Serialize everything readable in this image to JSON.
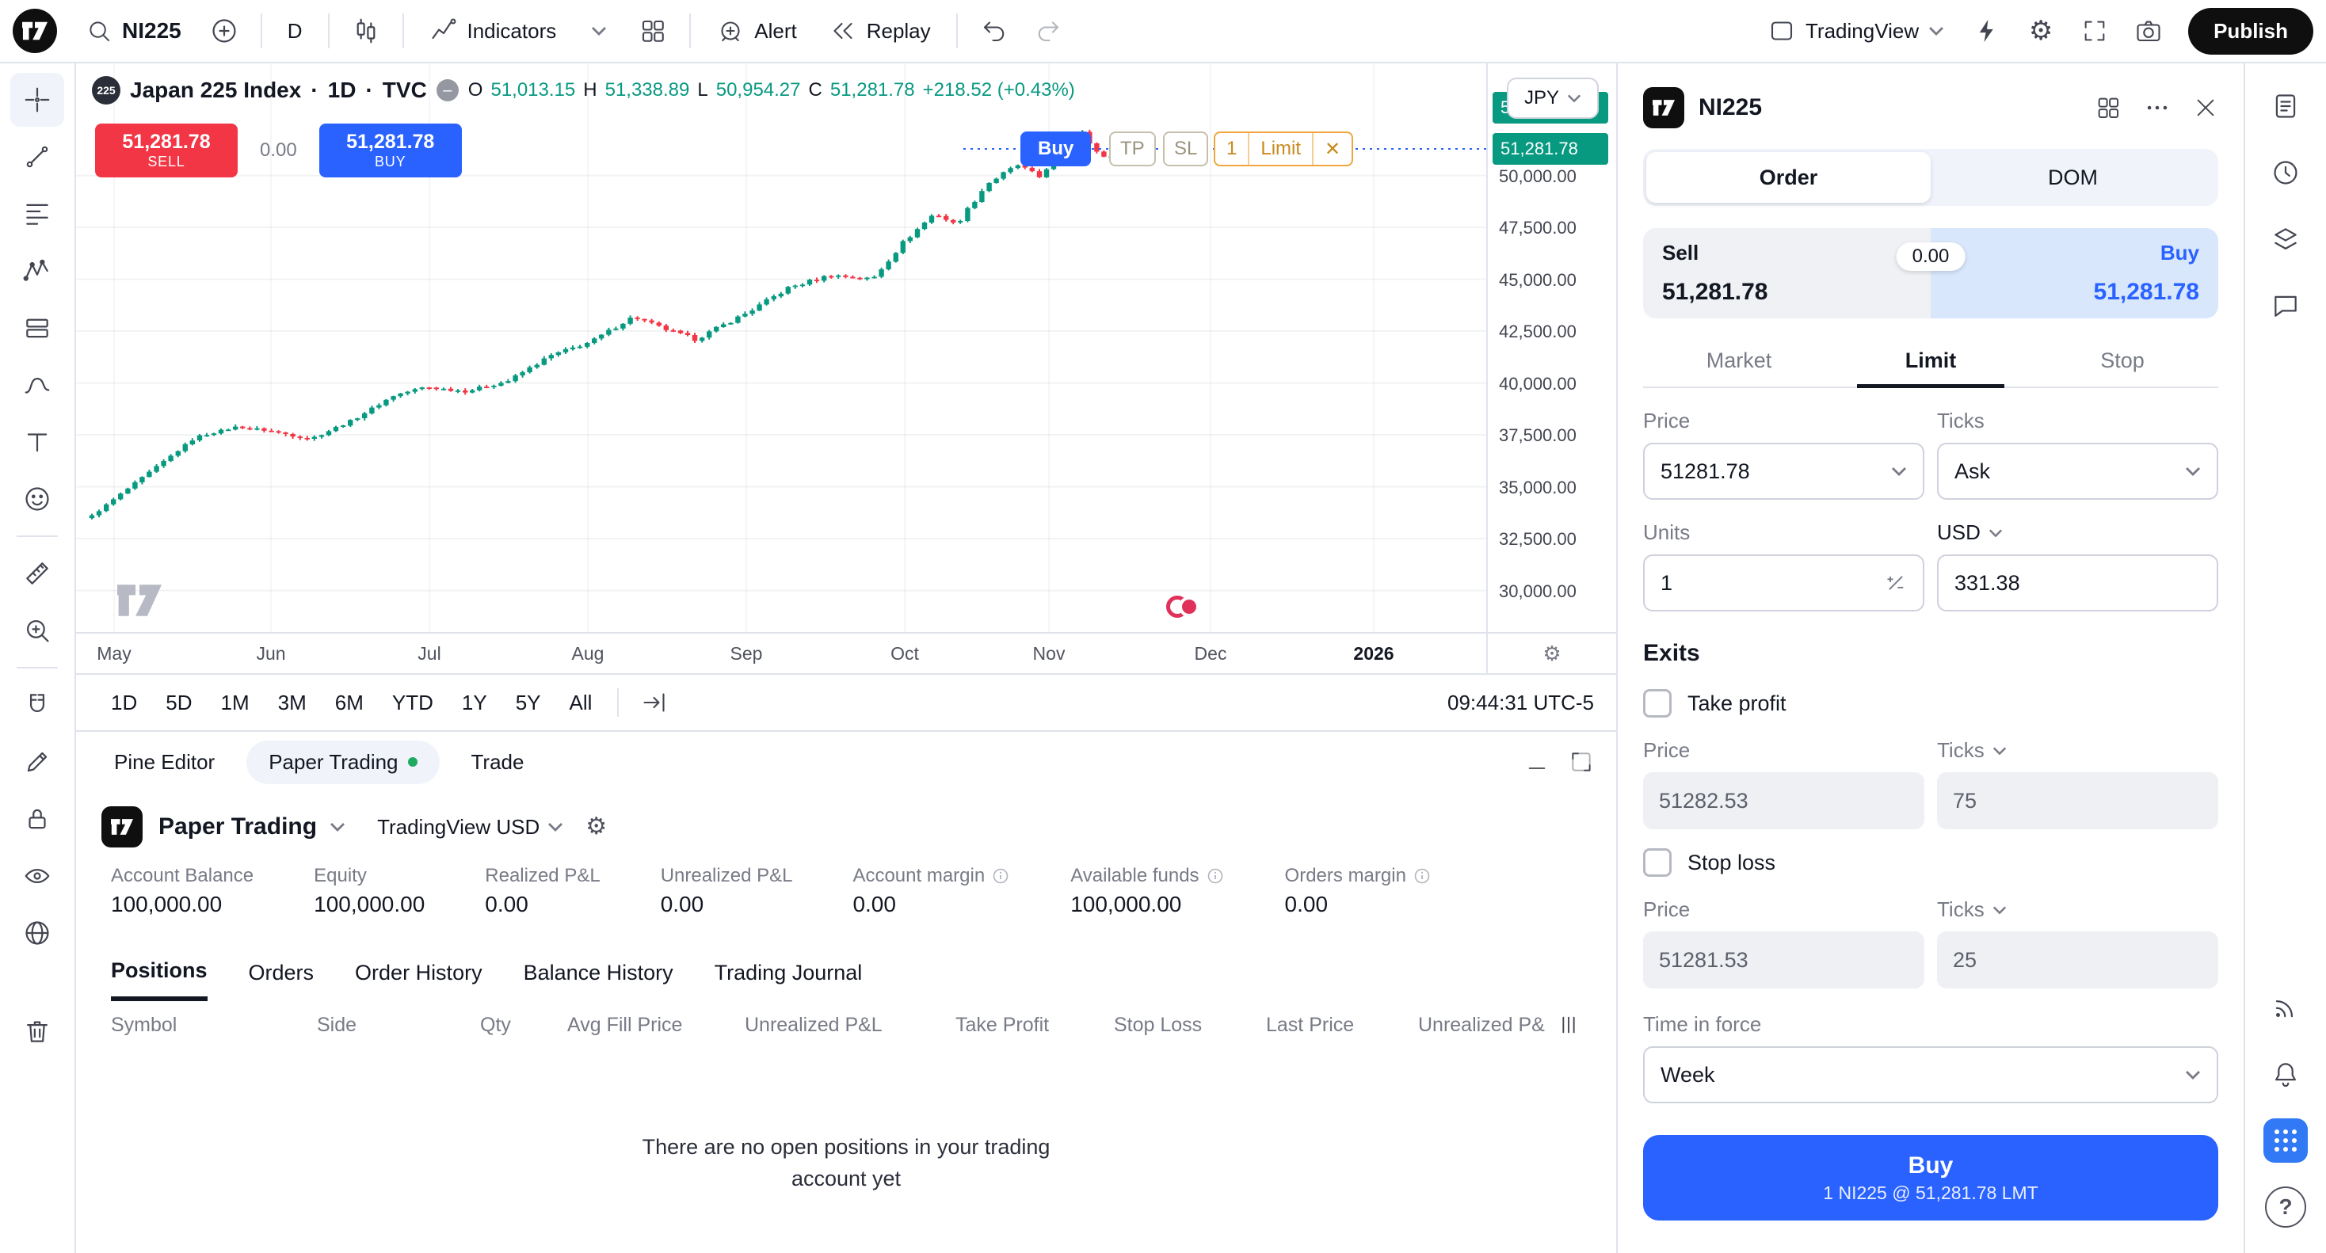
{
  "colors": {
    "accent": "#2962ff",
    "up": "#089981",
    "down": "#f23645",
    "pending": "#f0a63f"
  },
  "topbar": {
    "symbol_search": "NI225",
    "interval": "D",
    "indicators": "Indicators",
    "alert": "Alert",
    "replay": "Replay",
    "layout_name": "TradingView",
    "publish": "Publish"
  },
  "chart": {
    "legend": {
      "badge": "225",
      "title": "Japan 225 Index",
      "sep1": "·",
      "interval": "1D",
      "sep2": "·",
      "exchange": "TVC",
      "o_key": "O",
      "o": "51,013.15",
      "h_key": "H",
      "h": "51,338.89",
      "l_key": "L",
      "l": "50,954.27",
      "c_key": "C",
      "c": "51,281.78",
      "change": "+218.52 (+0.43%)"
    },
    "sell_price": "51,281.78",
    "sell_label": "SELL",
    "spread": "0.00",
    "buy_price": "51,281.78",
    "buy_label": "BUY",
    "currency": "JPY",
    "chips": {
      "buy": "Buy",
      "tp": "TP",
      "sl": "SL",
      "qty": "1",
      "type": "Limit",
      "close": "✕"
    },
    "tag_top": "51,281.78",
    "tag_price": "51,281.78",
    "price_axis": [
      "50,000.00",
      "47,500.00",
      "45,000.00",
      "42,500.00",
      "40,000.00",
      "37,500.00",
      "35,000.00",
      "32,500.00",
      "30,000.00"
    ],
    "time_axis": [
      "May",
      "Jun",
      "Jul",
      "Aug",
      "Sep",
      "Oct",
      "Nov",
      "Dec",
      "2026"
    ],
    "ranges": [
      "1D",
      "5D",
      "1M",
      "3M",
      "6M",
      "YTD",
      "1Y",
      "5Y",
      "All"
    ],
    "clock": "09:44:31 UTC-5"
  },
  "chart_data": {
    "type": "candlestick",
    "title": "Japan 225 Index (TVC:NI225), 1D",
    "interval": "1D",
    "y_range": [
      28000,
      55400
    ],
    "gridlines": [
      30000,
      32500,
      35000,
      37500,
      40000,
      42500,
      45000,
      47500,
      50000
    ],
    "x_labels": [
      "May",
      "Jun",
      "Jul",
      "Aug",
      "Sep",
      "Oct",
      "Nov",
      "Dec",
      "2026"
    ],
    "last": 51281.78,
    "anchors": [
      [
        0,
        33600
      ],
      [
        0.05,
        35500
      ],
      [
        0.1,
        37400
      ],
      [
        0.14,
        37900
      ],
      [
        0.17,
        37700
      ],
      [
        0.21,
        37300
      ],
      [
        0.25,
        38200
      ],
      [
        0.29,
        39400
      ],
      [
        0.32,
        39800
      ],
      [
        0.36,
        39600
      ],
      [
        0.4,
        40100
      ],
      [
        0.44,
        41300
      ],
      [
        0.48,
        42000
      ],
      [
        0.52,
        43200
      ],
      [
        0.55,
        42600
      ],
      [
        0.58,
        42100
      ],
      [
        0.63,
        43400
      ],
      [
        0.67,
        44600
      ],
      [
        0.71,
        45200
      ],
      [
        0.75,
        45000
      ],
      [
        0.78,
        46800
      ],
      [
        0.81,
        48200
      ],
      [
        0.83,
        47600
      ],
      [
        0.86,
        49600
      ],
      [
        0.89,
        50500
      ],
      [
        0.91,
        49900
      ],
      [
        0.93,
        51200
      ],
      [
        0.95,
        52300
      ],
      [
        0.97,
        50800
      ],
      [
        1,
        51281.78
      ]
    ]
  },
  "panel": {
    "tabs": [
      "Pine Editor",
      "Paper Trading",
      "Trade"
    ],
    "broker": "Paper Trading",
    "account": "TradingView USD",
    "stats": [
      {
        "label": "Account Balance",
        "value": "100,000.00",
        "info": false
      },
      {
        "label": "Equity",
        "value": "100,000.00",
        "info": false
      },
      {
        "label": "Realized P&L",
        "value": "0.00",
        "info": false
      },
      {
        "label": "Unrealized P&L",
        "value": "0.00",
        "info": false
      },
      {
        "label": "Account margin",
        "value": "0.00",
        "info": true
      },
      {
        "label": "Available funds",
        "value": "100,000.00",
        "info": true
      },
      {
        "label": "Orders margin",
        "value": "0.00",
        "info": true
      }
    ],
    "subtabs": [
      "Positions",
      "Orders",
      "Order History",
      "Balance History",
      "Trading Journal"
    ],
    "headers": [
      "Symbol",
      "Side",
      "Qty",
      "Avg Fill Price",
      "Unrealized P&L",
      "Take Profit",
      "Stop Loss",
      "Last Price",
      "Unrealized P&"
    ],
    "empty1": "There are no open positions in your trading",
    "empty2": "account yet"
  },
  "order": {
    "symbol": "NI225",
    "tab_order": "Order",
    "tab_dom": "DOM",
    "sell_label": "Sell",
    "sell_price": "51,281.78",
    "spread": "0.00",
    "buy_label": "Buy",
    "buy_price": "51,281.78",
    "type_market": "Market",
    "type_limit": "Limit",
    "type_stop": "Stop",
    "price_label": "Price",
    "ticks_label": "Ticks",
    "price_value": "51281.78",
    "ticks_value": "Ask",
    "units_label": "Units",
    "currency_label": "USD",
    "units_value": "1",
    "amount_value": "331.38",
    "exits": "Exits",
    "tp_label": "Take profit",
    "tp_price_label": "Price",
    "tp_ticks_label": "Ticks",
    "tp_price": "51282.53",
    "tp_ticks": "75",
    "sl_label": "Stop loss",
    "sl_price_label": "Price",
    "sl_ticks_label": "Ticks",
    "sl_price": "51281.53",
    "sl_ticks": "25",
    "tif_label": "Time in force",
    "tif_value": "Week",
    "submit_label": "Buy",
    "submit_sub": "1 NI225 @ 51,281.78 LMT"
  }
}
